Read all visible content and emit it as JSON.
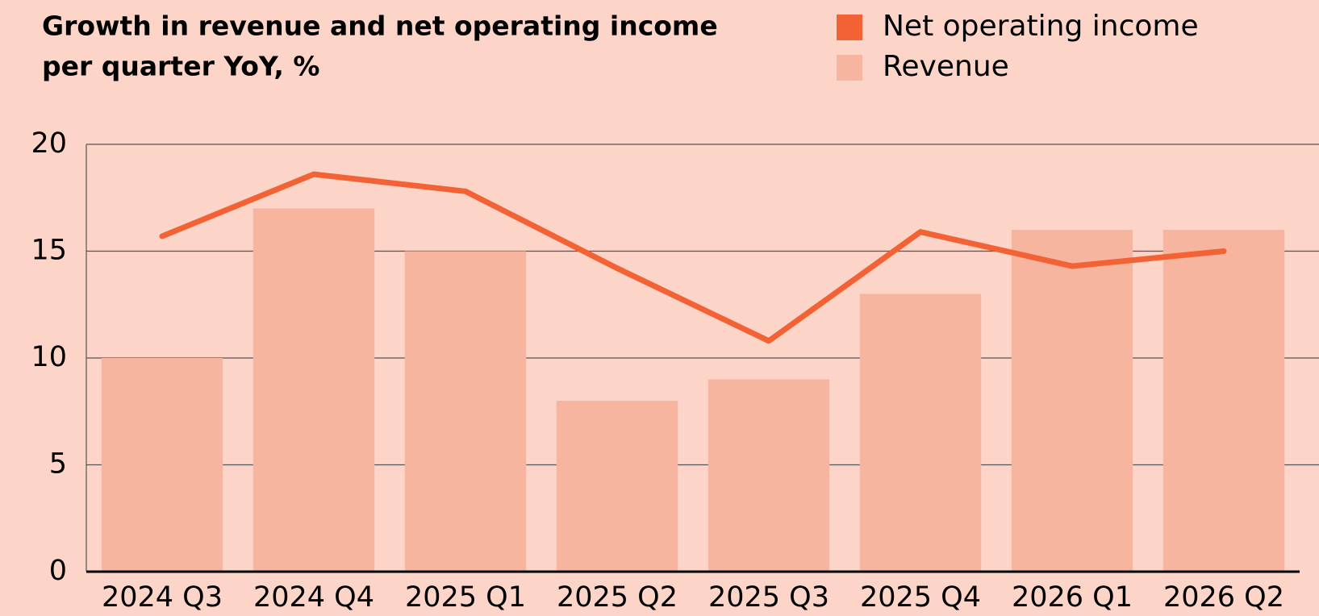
{
  "chart_data": {
    "type": "bar",
    "title": [
      "Growth in revenue and net operating income",
      "per quarter YoY, %"
    ],
    "categories": [
      "2024 Q3",
      "2024 Q4",
      "2025 Q1",
      "2025 Q2",
      "2025 Q3",
      "2025 Q4",
      "2026 Q1",
      "2026 Q2"
    ],
    "series": [
      {
        "name": "Net operating income",
        "color": "#f26235",
        "type": "line",
        "values": [
          15.7,
          18.6,
          17.8,
          14.2,
          10.8,
          15.9,
          14.3,
          15.0
        ]
      },
      {
        "name": "Revenue",
        "color": "#f7b5a0",
        "type": "bar",
        "values": [
          10,
          17,
          15,
          8,
          9,
          13,
          16,
          16
        ]
      }
    ],
    "ylim": [
      0,
      20
    ],
    "yticks": [
      0,
      5,
      10,
      15,
      20
    ],
    "grid": true
  }
}
